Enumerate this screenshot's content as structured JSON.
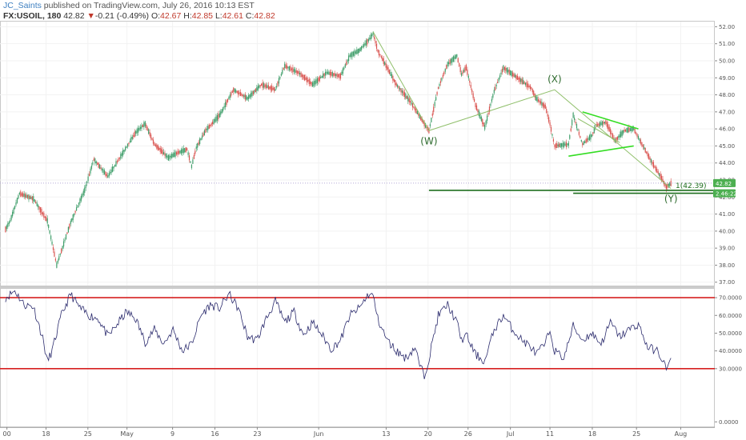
{
  "header": {
    "author": "JC_Saints",
    "published": " published on TradingView.com, July 26, 2016 10:13 EST",
    "symbol": "FX:USOIL, 180",
    "last": "42.82",
    "change": "▼",
    "change_text": "-0.21 (-0.49%)",
    "ohlc": [
      {
        "k": "O:",
        "v": "42.67"
      },
      {
        "k": "H:",
        "v": "42.85"
      },
      {
        "k": "L:",
        "v": "42.61"
      },
      {
        "k": "C:",
        "v": "42.82"
      }
    ]
  },
  "colors": {
    "bull": "#3f9e6a",
    "bear": "#d9534f",
    "rsi_line": "#2c2c6e",
    "rsi_bands": "#d62020",
    "wave_line": "#8fbf6a",
    "triangle": "#33dd22",
    "target_line": "#1e6e1e",
    "price_badge": "#4caf50"
  },
  "chart_data": [
    {
      "type": "candlestick",
      "title": "",
      "ylim": [
        36.8,
        52.3
      ],
      "y_ticks": [
        "52.00",
        "51.00",
        "50.00",
        "49.00",
        "48.00",
        "47.00",
        "46.00",
        "45.00",
        "44.00",
        "43.00",
        "42.00",
        "41.00",
        "40.00",
        "39.00",
        "38.00",
        "37.00"
      ],
      "path_anchors": [
        {
          "x": 0,
          "y": 40.1
        },
        {
          "x": 1,
          "y": 40.6
        },
        {
          "x": 3,
          "y": 42.2
        },
        {
          "x": 6,
          "y": 41.9
        },
        {
          "x": 9,
          "y": 40.6
        },
        {
          "x": 11,
          "y": 38.0
        },
        {
          "x": 14,
          "y": 40.5
        },
        {
          "x": 17,
          "y": 42.4
        },
        {
          "x": 19,
          "y": 44.2
        },
        {
          "x": 22,
          "y": 43.2
        },
        {
          "x": 25,
          "y": 44.5
        },
        {
          "x": 28,
          "y": 45.8
        },
        {
          "x": 30,
          "y": 46.3
        },
        {
          "x": 32,
          "y": 45.1
        },
        {
          "x": 35,
          "y": 44.3
        },
        {
          "x": 37,
          "y": 44.6
        },
        {
          "x": 39,
          "y": 44.8
        },
        {
          "x": 40,
          "y": 43.8
        },
        {
          "x": 41,
          "y": 44.9
        },
        {
          "x": 43,
          "y": 45.9
        },
        {
          "x": 46,
          "y": 46.8
        },
        {
          "x": 49,
          "y": 48.3
        },
        {
          "x": 52,
          "y": 47.8
        },
        {
          "x": 55,
          "y": 48.6
        },
        {
          "x": 58,
          "y": 48.3
        },
        {
          "x": 60,
          "y": 49.7
        },
        {
          "x": 63,
          "y": 49.3
        },
        {
          "x": 66,
          "y": 48.6
        },
        {
          "x": 69,
          "y": 49.3
        },
        {
          "x": 72,
          "y": 49.1
        },
        {
          "x": 74,
          "y": 50.3
        },
        {
          "x": 76,
          "y": 50.6
        },
        {
          "x": 78,
          "y": 51.2
        },
        {
          "x": 79,
          "y": 51.6
        },
        {
          "x": 80,
          "y": 50.6
        },
        {
          "x": 84,
          "y": 48.6
        },
        {
          "x": 87,
          "y": 47.6
        },
        {
          "x": 90,
          "y": 46.3
        },
        {
          "x": 91,
          "y": 45.9
        },
        {
          "x": 93,
          "y": 48.4
        },
        {
          "x": 95,
          "y": 49.8
        },
        {
          "x": 97,
          "y": 50.3
        },
        {
          "x": 98,
          "y": 49.2
        },
        {
          "x": 99,
          "y": 49.6
        },
        {
          "x": 101,
          "y": 47.4
        },
        {
          "x": 103,
          "y": 46.1
        },
        {
          "x": 105,
          "y": 48.2
        },
        {
          "x": 107,
          "y": 49.6
        },
        {
          "x": 109,
          "y": 49.2
        },
        {
          "x": 111,
          "y": 48.8
        },
        {
          "x": 113,
          "y": 48.4
        },
        {
          "x": 114,
          "y": 47.8
        },
        {
          "x": 116,
          "y": 47.3
        },
        {
          "x": 117,
          "y": 46.3
        },
        {
          "x": 118,
          "y": 45.0
        },
        {
          "x": 121,
          "y": 45.1
        },
        {
          "x": 122,
          "y": 46.8
        },
        {
          "x": 124,
          "y": 45.1
        },
        {
          "x": 126,
          "y": 45.6
        },
        {
          "x": 127,
          "y": 46.2
        },
        {
          "x": 129,
          "y": 46.4
        },
        {
          "x": 131,
          "y": 45.3
        },
        {
          "x": 133,
          "y": 45.9
        },
        {
          "x": 135,
          "y": 46.0
        },
        {
          "x": 137,
          "y": 45.0
        },
        {
          "x": 139,
          "y": 44.0
        },
        {
          "x": 141,
          "y": 43.1
        },
        {
          "x": 142,
          "y": 42.6
        },
        {
          "x": 143,
          "y": 42.8
        }
      ],
      "wxy": {
        "points": [
          {
            "label": "(W)",
            "x": 91,
            "y": 45.9
          },
          {
            "label": "(X)",
            "x": 118,
            "y": 48.3
          },
          {
            "label": "(Y)",
            "x": 143,
            "y": 42.5
          }
        ],
        "start": {
          "x": 79,
          "y": 51.7
        },
        "triangle": {
          "upper": [
            {
              "x": 124,
              "y": 47.0
            },
            {
              "x": 136,
              "y": 46.0
            }
          ],
          "lower": [
            {
              "x": 121,
              "y": 44.4
            },
            {
              "x": 135,
              "y": 45.0
            }
          ],
          "mid": [
            {
              "x": 123,
              "y": 46.6
            },
            {
              "x": 132,
              "y": 45.2
            }
          ]
        }
      },
      "target_lines": [
        {
          "label": "1(42.39)",
          "y": 42.39,
          "x_start": 91
        },
        {
          "label": "",
          "y": 42.22,
          "x_start": 122
        }
      ],
      "price_badges": [
        "42.82",
        "2.46:22"
      ],
      "dotted_level": 42.82
    },
    {
      "type": "line",
      "title": "",
      "ylim": [
        -3,
        75
      ],
      "y_ticks": [
        "70.0000",
        "60.0000",
        "50.0000",
        "40.0000",
        "30.0000",
        "0.0000"
      ],
      "bands": [
        70,
        30
      ],
      "anchors": [
        {
          "x": 0,
          "y": 70
        },
        {
          "x": 2,
          "y": 74
        },
        {
          "x": 4,
          "y": 66
        },
        {
          "x": 6,
          "y": 65
        },
        {
          "x": 8,
          "y": 47
        },
        {
          "x": 9,
          "y": 34
        },
        {
          "x": 10,
          "y": 40
        },
        {
          "x": 12,
          "y": 60
        },
        {
          "x": 14,
          "y": 72
        },
        {
          "x": 16,
          "y": 64
        },
        {
          "x": 18,
          "y": 60
        },
        {
          "x": 20,
          "y": 58
        },
        {
          "x": 22,
          "y": 48
        },
        {
          "x": 24,
          "y": 55
        },
        {
          "x": 26,
          "y": 62
        },
        {
          "x": 28,
          "y": 58
        },
        {
          "x": 30,
          "y": 45
        },
        {
          "x": 32,
          "y": 52
        },
        {
          "x": 34,
          "y": 44
        },
        {
          "x": 36,
          "y": 52
        },
        {
          "x": 38,
          "y": 40
        },
        {
          "x": 40,
          "y": 44
        },
        {
          "x": 42,
          "y": 60
        },
        {
          "x": 44,
          "y": 66
        },
        {
          "x": 46,
          "y": 64
        },
        {
          "x": 48,
          "y": 72
        },
        {
          "x": 50,
          "y": 64
        },
        {
          "x": 52,
          "y": 48
        },
        {
          "x": 54,
          "y": 46
        },
        {
          "x": 56,
          "y": 58
        },
        {
          "x": 58,
          "y": 68
        },
        {
          "x": 60,
          "y": 56
        },
        {
          "x": 62,
          "y": 62
        },
        {
          "x": 64,
          "y": 49
        },
        {
          "x": 66,
          "y": 56
        },
        {
          "x": 68,
          "y": 49
        },
        {
          "x": 70,
          "y": 41
        },
        {
          "x": 72,
          "y": 46
        },
        {
          "x": 74,
          "y": 60
        },
        {
          "x": 76,
          "y": 64
        },
        {
          "x": 78,
          "y": 72
        },
        {
          "x": 79,
          "y": 71
        },
        {
          "x": 80,
          "y": 58
        },
        {
          "x": 82,
          "y": 46
        },
        {
          "x": 84,
          "y": 40
        },
        {
          "x": 86,
          "y": 36
        },
        {
          "x": 88,
          "y": 42
        },
        {
          "x": 89,
          "y": 32
        },
        {
          "x": 90,
          "y": 26
        },
        {
          "x": 91,
          "y": 36
        },
        {
          "x": 93,
          "y": 60
        },
        {
          "x": 95,
          "y": 66
        },
        {
          "x": 97,
          "y": 56
        },
        {
          "x": 98,
          "y": 46
        },
        {
          "x": 99,
          "y": 49
        },
        {
          "x": 101,
          "y": 38
        },
        {
          "x": 103,
          "y": 34
        },
        {
          "x": 105,
          "y": 52
        },
        {
          "x": 107,
          "y": 60
        },
        {
          "x": 109,
          "y": 52
        },
        {
          "x": 111,
          "y": 46
        },
        {
          "x": 113,
          "y": 42
        },
        {
          "x": 114,
          "y": 38
        },
        {
          "x": 116,
          "y": 44
        },
        {
          "x": 117,
          "y": 52
        },
        {
          "x": 118,
          "y": 40
        },
        {
          "x": 120,
          "y": 36
        },
        {
          "x": 122,
          "y": 54
        },
        {
          "x": 124,
          "y": 46
        },
        {
          "x": 126,
          "y": 50
        },
        {
          "x": 128,
          "y": 44
        },
        {
          "x": 130,
          "y": 56
        },
        {
          "x": 132,
          "y": 48
        },
        {
          "x": 134,
          "y": 52
        },
        {
          "x": 136,
          "y": 55
        },
        {
          "x": 138,
          "y": 42
        },
        {
          "x": 140,
          "y": 40
        },
        {
          "x": 141,
          "y": 36
        },
        {
          "x": 142,
          "y": 30
        },
        {
          "x": 143,
          "y": 34
        }
      ]
    }
  ],
  "x_axis": {
    "bars_total": 150,
    "ticks": [
      {
        "label": "00",
        "x": 0.3
      },
      {
        "label": "18",
        "x": 8.7
      },
      {
        "label": "25",
        "x": 17.7
      },
      {
        "label": "May",
        "x": 26.1
      },
      {
        "label": "9",
        "x": 35.9
      },
      {
        "label": "16",
        "x": 45.0
      },
      {
        "label": "23",
        "x": 54.1
      },
      {
        "label": "Jun",
        "x": 67.3
      },
      {
        "label": "13",
        "x": 81.8
      },
      {
        "label": "20",
        "x": 90.8
      },
      {
        "label": "26",
        "x": 99.4
      },
      {
        "label": "Jul",
        "x": 108.5
      },
      {
        "label": "11",
        "x": 117.0
      },
      {
        "label": "18",
        "x": 126.1
      },
      {
        "label": "25",
        "x": 135.6
      },
      {
        "label": "Aug",
        "x": 145.1
      }
    ]
  }
}
